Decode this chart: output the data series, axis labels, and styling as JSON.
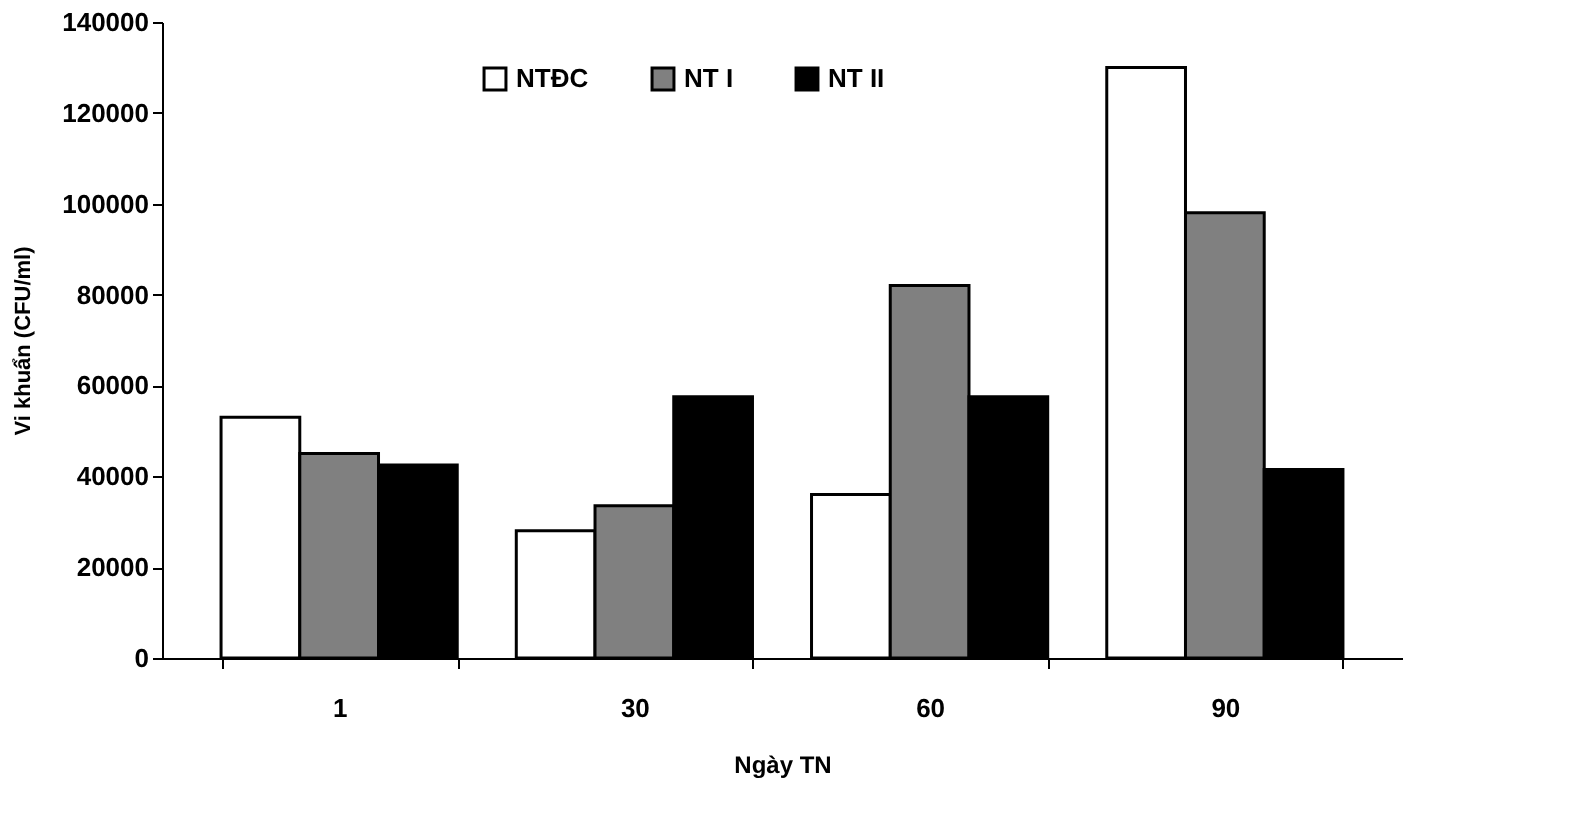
{
  "chart_data": {
    "type": "bar",
    "xlabel": "Ngày TN",
    "ylabel": "Vi khuẩn (CFU/ml)",
    "categories": [
      "1",
      "30",
      "60",
      "90"
    ],
    "series": [
      {
        "name": "NTĐC",
        "color": "#ffffff",
        "values": [
          53000,
          28000,
          36000,
          130000
        ]
      },
      {
        "name": "NT I",
        "color": "#808080",
        "values": [
          45000,
          33500,
          82000,
          98000
        ]
      },
      {
        "name": "NT II",
        "color": "#000000",
        "values": [
          42500,
          57500,
          57500,
          41500
        ]
      }
    ],
    "ylim": [
      0,
      140000
    ],
    "yticks": [
      0,
      20000,
      40000,
      60000,
      80000,
      100000,
      120000,
      140000
    ],
    "grid": false,
    "legend": "top"
  }
}
